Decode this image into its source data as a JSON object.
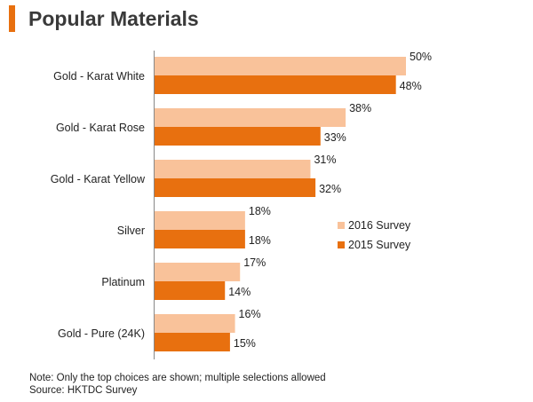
{
  "page": {
    "title": "Popular Materials",
    "note": "Note: Only the top choices are shown; multiple selections allowed",
    "source": "Source: HKTDC Survey"
  },
  "colors": {
    "accent": "#e8700f",
    "series_2016": "#f9c29a",
    "series_2015": "#e8700f",
    "axis": "#888888",
    "text": "#222222"
  },
  "chart_data": {
    "type": "bar",
    "orientation": "horizontal",
    "title": "Popular Materials",
    "categories": [
      "Gold - Karat White",
      "Gold - Karat Rose",
      "Gold - Karat Yellow",
      "Silver",
      "Platinum",
      "Gold - Pure (24K)"
    ],
    "series": [
      {
        "name": "2016 Survey",
        "values": [
          50,
          38,
          31,
          18,
          17,
          16
        ]
      },
      {
        "name": "2015 Survey",
        "values": [
          48,
          33,
          32,
          18,
          14,
          15
        ]
      }
    ],
    "value_suffix": "%",
    "xlim": [
      0,
      50
    ],
    "grid": false,
    "legend_position": "right"
  }
}
